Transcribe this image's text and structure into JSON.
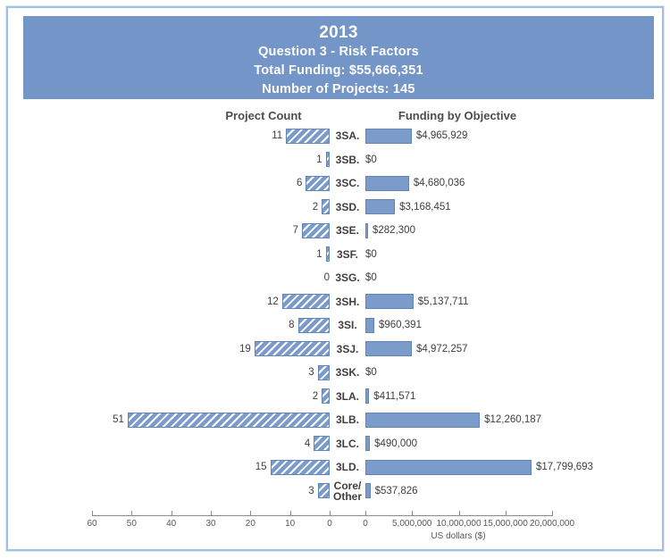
{
  "header": {
    "title": "2013",
    "subtitle": "Question 3 - Risk Factors",
    "total_funding": "Total Funding: $55,666,351",
    "num_projects": "Number of Projects: 145",
    "banner_color": "#7495c7",
    "text_color": "#ffffff"
  },
  "chart_data": {
    "type": "bar",
    "layout": "back-to-back horizontal tornado chart: hatched project-count bars growing left, solid funding bars growing right",
    "left_title": "Project Count",
    "right_title": "Funding by Objective",
    "bar_color": "#7b9ccb",
    "categories": [
      "3SA.",
      "3SB.",
      "3SC.",
      "3SD.",
      "3SE.",
      "3SF.",
      "3SG.",
      "3SH.",
      "3SI.",
      "3SJ.",
      "3SK.",
      "3LA.",
      "3LB.",
      "3LC.",
      "3LD.",
      "Core/\nOther"
    ],
    "series": [
      {
        "name": "Project Count",
        "values": [
          11,
          1,
          6,
          2,
          7,
          1,
          0,
          12,
          8,
          19,
          3,
          2,
          51,
          4,
          15,
          3
        ],
        "style": "hatched",
        "direction": "left"
      },
      {
        "name": "Funding by Objective",
        "values": [
          4965929,
          0,
          4680036,
          3168451,
          282300,
          0,
          0,
          5137711,
          960391,
          4972257,
          0,
          411571,
          12260187,
          490000,
          17799693,
          537826
        ],
        "style": "solid",
        "direction": "right"
      }
    ],
    "funding_labels": [
      "$4,965,929",
      "$0",
      "$4,680,036",
      "$3,168,451",
      "$282,300",
      "$0",
      "$0",
      "$5,137,711",
      "$960,391",
      "$4,972,257",
      "$0",
      "$411,571",
      "$12,260,187",
      "$490,000",
      "$17,799,693",
      "$537,826"
    ],
    "left_axis": {
      "ticks": [
        60,
        50,
        40,
        30,
        20,
        10,
        0
      ],
      "range": [
        0,
        60
      ],
      "reversed": true
    },
    "right_axis": {
      "tick_labels": [
        "0",
        "5,000,000",
        "10,000,000",
        "15,000,000",
        "20,000,000"
      ],
      "tick_values_millions": [
        0,
        5,
        10,
        15,
        20
      ],
      "range": [
        0,
        20000000
      ],
      "label": "US dollars ($)"
    },
    "grid": false,
    "legend": false
  }
}
